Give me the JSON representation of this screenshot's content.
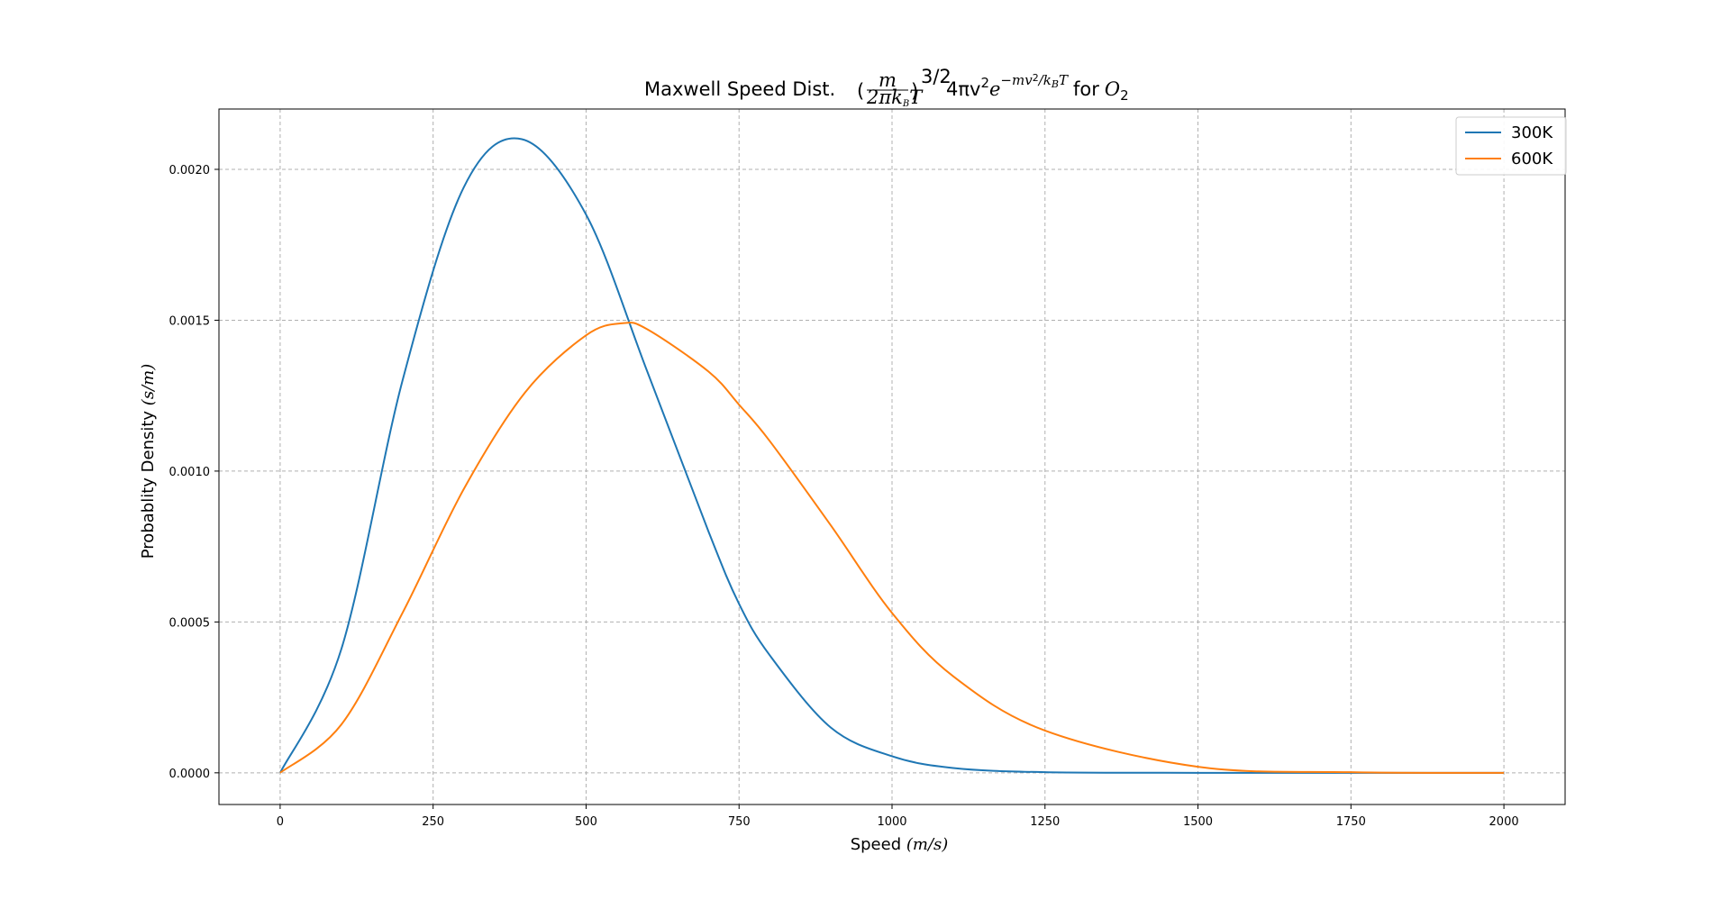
{
  "chart_data": {
    "type": "line",
    "title_parts": {
      "prefix": "Maxwell Speed Dist.",
      "frac_num": "m",
      "frac_den": "2πk",
      "frac_den_sub": "B",
      "frac_den_tail": "T",
      "exp_outer": "3/2",
      "body": "4πv",
      "body_sup": "2",
      "e": "e",
      "exp_main": "−mv",
      "exp_sq": "2",
      "exp_slash": "/k",
      "exp_sub": "B",
      "exp_T": "T",
      "for_text": "for",
      "molecule": "O",
      "molecule_sub": "2"
    },
    "xlabel": "Speed",
    "xlabel_unit": "(m/s)",
    "ylabel": "Probablity Density",
    "ylabel_unit": "(s/m)",
    "xlim": [
      -100,
      2100
    ],
    "ylim": [
      -0.000105,
      0.0022
    ],
    "x_ticks": [
      0,
      250,
      500,
      750,
      1000,
      1250,
      1500,
      1750,
      2000
    ],
    "x_tick_labels": [
      "0",
      "250",
      "500",
      "750",
      "1000",
      "1250",
      "1500",
      "1750",
      "2000"
    ],
    "y_ticks": [
      0,
      0.0005,
      0.001,
      0.0015,
      0.002
    ],
    "y_tick_labels": [
      "0.0000",
      "0.0005",
      "0.0010",
      "0.0015",
      "0.0020"
    ],
    "grid": true,
    "legend_position": "top-right",
    "x_range": [
      0,
      2000
    ],
    "series": [
      {
        "name": "300K",
        "color": "#1f77b4",
        "x": [
          0,
          100,
          200,
          300,
          395,
          500,
          600,
          700,
          750,
          800,
          900,
          1000,
          1100,
          1250,
          1500,
          1750,
          2000
        ],
        "values": [
          0,
          0.00041,
          0.0013,
          0.00194,
          0.0021,
          0.00185,
          0.00133,
          0.0008,
          0.00056,
          0.00039,
          0.00015,
          5.5e-05,
          1.6e-05,
          2e-06,
          0,
          0,
          0
        ]
      },
      {
        "name": "600K",
        "color": "#ff7f0e",
        "x": [
          0,
          100,
          200,
          300,
          400,
          500,
          560,
          600,
          700,
          750,
          800,
          900,
          1000,
          1100,
          1250,
          1500,
          1750,
          2000
        ],
        "values": [
          0,
          0.00016,
          0.00053,
          0.00094,
          0.00126,
          0.00145,
          0.00149,
          0.00147,
          0.00133,
          0.00122,
          0.0011,
          0.00082,
          0.00053,
          0.00032,
          0.00014,
          2e-05,
          2e-06,
          0
        ]
      }
    ]
  }
}
